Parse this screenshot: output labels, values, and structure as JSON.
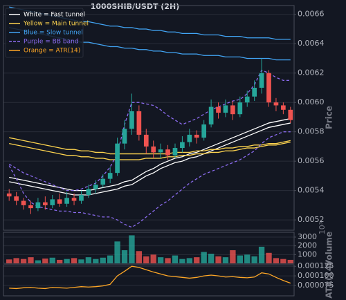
{
  "chart_data": [
    {
      "type": "candlestick",
      "title": "1000SHIB/USDT (2H)",
      "ylabel": "Price",
      "open": [
        0.00538,
        0.00536,
        0.00533,
        0.0053,
        0.00528,
        0.00532,
        0.0053,
        0.00534,
        0.00531,
        0.00535,
        0.00533,
        0.00537,
        0.00541,
        0.00544,
        0.00548,
        0.00552,
        0.00572,
        0.00582,
        0.00594,
        0.00578,
        0.0057,
        0.00566,
        0.00568,
        0.00564,
        0.00569,
        0.00573,
        0.00578,
        0.00576,
        0.00585,
        0.00597,
        0.00593,
        0.00598,
        0.00592,
        0.006,
        0.00604,
        0.0061,
        0.0062,
        0.006,
        0.00598,
        0.00595
      ],
      "high": [
        0.00541,
        0.00539,
        0.00535,
        0.00533,
        0.00535,
        0.00536,
        0.00537,
        0.00538,
        0.00539,
        0.00538,
        0.0054,
        0.00544,
        0.00547,
        0.00551,
        0.00556,
        0.00576,
        0.00588,
        0.00606,
        0.00598,
        0.00582,
        0.00574,
        0.00572,
        0.00571,
        0.00572,
        0.00577,
        0.00582,
        0.00581,
        0.00588,
        0.00602,
        0.006,
        0.00602,
        0.00601,
        0.00604,
        0.00608,
        0.00615,
        0.0063,
        0.00622,
        0.00603,
        0.006,
        0.00597
      ],
      "low": [
        0.00533,
        0.0053,
        0.00527,
        0.00524,
        0.00526,
        0.00527,
        0.00528,
        0.00529,
        0.00529,
        0.0053,
        0.00531,
        0.00535,
        0.00538,
        0.00542,
        0.00545,
        0.0055,
        0.00568,
        0.00578,
        0.00574,
        0.00565,
        0.00562,
        0.00562,
        0.00561,
        0.00562,
        0.00566,
        0.0057,
        0.00572,
        0.00574,
        0.00583,
        0.00589,
        0.0059,
        0.00588,
        0.0059,
        0.00597,
        0.00601,
        0.00606,
        0.00597,
        0.00594,
        0.00592,
        0.00586
      ],
      "close": [
        0.00536,
        0.00533,
        0.0053,
        0.00528,
        0.00532,
        0.0053,
        0.00534,
        0.00531,
        0.00535,
        0.00533,
        0.00537,
        0.00541,
        0.00544,
        0.00548,
        0.00552,
        0.00572,
        0.00582,
        0.00594,
        0.00578,
        0.0057,
        0.00566,
        0.00568,
        0.00564,
        0.00569,
        0.00573,
        0.00578,
        0.00576,
        0.00585,
        0.00597,
        0.00593,
        0.00598,
        0.00592,
        0.006,
        0.00604,
        0.0061,
        0.0062,
        0.006,
        0.00598,
        0.00595,
        0.00588
      ],
      "up_color": "#26a69a",
      "down_color": "#ef5350",
      "series": [
        {
          "name": "White = Fast tunnel",
          "color": "#ffffff",
          "style": "solid",
          "upper": [
            0.00549,
            0.00548,
            0.00547,
            0.00546,
            0.00545,
            0.00544,
            0.00543,
            0.00542,
            0.00541,
            0.0054,
            0.0054,
            0.0054,
            0.00541,
            0.00542,
            0.00543,
            0.00544,
            0.00546,
            0.00547,
            0.0055,
            0.00553,
            0.00555,
            0.00558,
            0.0056,
            0.00562,
            0.00563,
            0.00565,
            0.00566,
            0.00568,
            0.0057,
            0.00572,
            0.00574,
            0.00576,
            0.00578,
            0.0058,
            0.00582,
            0.00584,
            0.00586,
            0.00587,
            0.00588,
            0.00589
          ],
          "lower": [
            0.00546,
            0.00545,
            0.00544,
            0.00543,
            0.00542,
            0.00541,
            0.0054,
            0.00539,
            0.00538,
            0.00537,
            0.00537,
            0.00537,
            0.00538,
            0.00539,
            0.0054,
            0.00541,
            0.00543,
            0.00544,
            0.00547,
            0.0055,
            0.00552,
            0.00555,
            0.00557,
            0.00559,
            0.0056,
            0.00562,
            0.00563,
            0.00565,
            0.00567,
            0.00569,
            0.00571,
            0.00573,
            0.00575,
            0.00577,
            0.00579,
            0.00581,
            0.00583,
            0.00584,
            0.00585,
            0.00586
          ]
        },
        {
          "name": "Yellow = Main tunnel",
          "color": "#ffd54f",
          "style": "solid",
          "upper": [
            0.00576,
            0.00575,
            0.00574,
            0.00573,
            0.00572,
            0.00571,
            0.0057,
            0.00569,
            0.00568,
            0.00568,
            0.00567,
            0.00567,
            0.00566,
            0.00566,
            0.00565,
            0.00565,
            0.00565,
            0.00565,
            0.00565,
            0.00565,
            0.00565,
            0.00565,
            0.00565,
            0.00566,
            0.00566,
            0.00566,
            0.00567,
            0.00567,
            0.00568,
            0.00568,
            0.00569,
            0.00569,
            0.0057,
            0.0057,
            0.00571,
            0.00571,
            0.00572,
            0.00572,
            0.00573,
            0.00574
          ],
          "lower": [
            0.00572,
            0.00571,
            0.0057,
            0.00569,
            0.00568,
            0.00567,
            0.00566,
            0.00565,
            0.00564,
            0.00564,
            0.00563,
            0.00563,
            0.00562,
            0.00562,
            0.00561,
            0.00561,
            0.00561,
            0.00561,
            0.00561,
            0.00562,
            0.00562,
            0.00562,
            0.00563,
            0.00563,
            0.00564,
            0.00564,
            0.00565,
            0.00565,
            0.00566,
            0.00566,
            0.00567,
            0.00567,
            0.00568,
            0.00569,
            0.00569,
            0.0057,
            0.00571,
            0.00571,
            0.00572,
            0.00573
          ]
        },
        {
          "name": "Blue = Slow tunnel",
          "color": "#42a5f5",
          "style": "solid",
          "upper": [
            0.00665,
            0.00664,
            0.00663,
            0.00662,
            0.00661,
            0.0066,
            0.00659,
            0.00658,
            0.00657,
            0.00656,
            0.00655,
            0.00655,
            0.00654,
            0.00653,
            0.00652,
            0.00652,
            0.00651,
            0.00651,
            0.0065,
            0.0065,
            0.00649,
            0.00649,
            0.00648,
            0.00648,
            0.00647,
            0.00647,
            0.00647,
            0.00646,
            0.00646,
            0.00646,
            0.00645,
            0.00645,
            0.00645,
            0.00644,
            0.00644,
            0.00644,
            0.00644,
            0.00643,
            0.00643,
            0.00643
          ],
          "lower": [
            0.00651,
            0.0065,
            0.00649,
            0.00648,
            0.00647,
            0.00646,
            0.00645,
            0.00644,
            0.00643,
            0.00642,
            0.00641,
            0.00641,
            0.0064,
            0.00639,
            0.00638,
            0.00638,
            0.00637,
            0.00637,
            0.00636,
            0.00636,
            0.00635,
            0.00635,
            0.00634,
            0.00634,
            0.00633,
            0.00633,
            0.00633,
            0.00632,
            0.00632,
            0.00632,
            0.00631,
            0.00631,
            0.00631,
            0.0063,
            0.0063,
            0.0063,
            0.0063,
            0.00629,
            0.00629,
            0.00629
          ]
        },
        {
          "name": "Purple = BB band",
          "color": "#8c6cf0",
          "style": "dashed",
          "upper": [
            0.00558,
            0.00555,
            0.00552,
            0.0055,
            0.00548,
            0.00546,
            0.00544,
            0.00542,
            0.0054,
            0.0054,
            0.00541,
            0.00543,
            0.00545,
            0.0055,
            0.00556,
            0.00565,
            0.00585,
            0.006,
            0.006,
            0.00599,
            0.00598,
            0.00595,
            0.00591,
            0.00588,
            0.00585,
            0.00587,
            0.00589,
            0.00592,
            0.00595,
            0.00597,
            0.00599,
            0.00601,
            0.00602,
            0.00606,
            0.00612,
            0.00622,
            0.0062,
            0.00617,
            0.00615,
            0.00615
          ],
          "lower": [
            0.00557,
            0.00548,
            0.00538,
            0.00532,
            0.00529,
            0.00528,
            0.00527,
            0.00526,
            0.00526,
            0.00525,
            0.00525,
            0.00524,
            0.00523,
            0.00522,
            0.00522,
            0.0052,
            0.00517,
            0.00515,
            0.00518,
            0.00522,
            0.00526,
            0.0053,
            0.00533,
            0.00537,
            0.00541,
            0.00545,
            0.00548,
            0.00551,
            0.00553,
            0.00555,
            0.00557,
            0.00559,
            0.00561,
            0.00564,
            0.00567,
            0.00572,
            0.00576,
            0.00578,
            0.0058,
            0.0058
          ]
        }
      ],
      "ylim": [
        0.00513,
        0.00666
      ],
      "yticks": [
        0.0052,
        0.0054,
        0.0056,
        0.0058,
        {
          "value": 0.006,
          "label": "0.0060"
        },
        0.0062,
        0.0064,
        0.0066
      ],
      "grid": true,
      "legend": "upper left"
    },
    {
      "type": "bar",
      "ylabel": "Volume",
      "scale_label": "10³",
      "values": [
        450,
        600,
        500,
        700,
        350,
        550,
        650,
        400,
        500,
        600,
        450,
        700,
        500,
        650,
        900,
        2500,
        1500,
        3200,
        1400,
        800,
        1000,
        700,
        600,
        900,
        500,
        600,
        700,
        1300,
        1100,
        800,
        700,
        1500,
        900,
        1000,
        800,
        1900,
        1200,
        600,
        500,
        400
      ],
      "ylim": [
        0,
        3550
      ],
      "yticks": [
        1000,
        2000,
        3000
      ],
      "grid": true
    },
    {
      "type": "line",
      "ylabel": "ATR(14)",
      "series": [
        {
          "name": "Orange = ATR(14)",
          "color": "#ffa726",
          "values": [
            6.8e-05,
            6.7e-05,
            6.9e-05,
            7e-05,
            6.8e-05,
            6.7e-05,
            7e-05,
            6.9e-05,
            6.8e-05,
            7e-05,
            7.2e-05,
            7.1e-05,
            7.2e-05,
            7.4e-05,
            7.8e-05,
            0.0001,
            0.000112,
            0.000125,
            0.000122,
            0.000116,
            0.00011,
            0.000105,
            0.0001,
            9.8e-05,
            9.6e-05,
            9.4e-05,
            9.6e-05,
            0.0001,
            0.000102,
            0.0001,
            9.7e-05,
            9.8e-05,
            9.6e-05,
            9.5e-05,
            9.7e-05,
            0.000108,
            0.000105,
            9.6e-05,
            8.8e-05,
            8.1e-05
          ]
        }
      ],
      "ylim": [
        4.8e-05,
        0.000129
      ],
      "yticks": [
        7.5e-05,
        {
          "value": 0.0001,
          "label": "0.000100"
        },
        0.000125
      ],
      "grid": true
    }
  ]
}
